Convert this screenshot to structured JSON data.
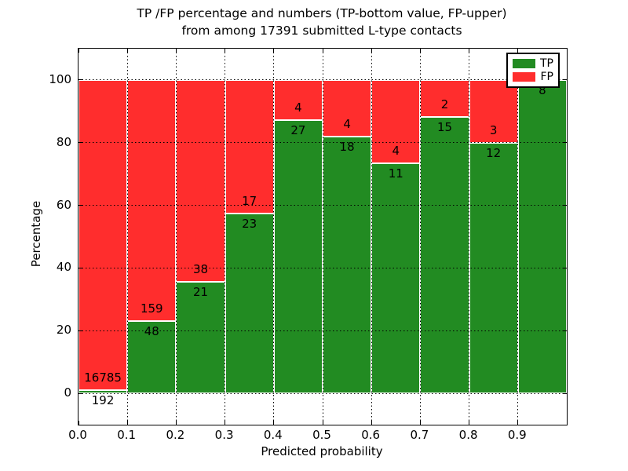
{
  "figure": {
    "title_line1": "TP /FP percentage and numbers (TP-bottom value, FP-upper)",
    "title_line2": "from among 17391 submitted L-type contacts"
  },
  "axes": {
    "xlabel": "Predicted probability",
    "ylabel": "Percentage",
    "xticks": [
      "0.0",
      "0.1",
      "0.2",
      "0.3",
      "0.4",
      "0.5",
      "0.6",
      "0.7",
      "0.8",
      "0.9"
    ],
    "yticks": [
      "0",
      "20",
      "40",
      "60",
      "80",
      "100"
    ]
  },
  "legend": {
    "items": [
      {
        "label": "TP",
        "color": "#228B22"
      },
      {
        "label": "FP",
        "color": "#FF2D2D"
      }
    ]
  },
  "chart_data": {
    "type": "bar",
    "stacked": true,
    "title": "TP /FP percentage and numbers (TP-bottom value, FP-upper) from among 17391 submitted L-type contacts",
    "xlabel": "Predicted probability",
    "ylabel": "Percentage",
    "xlim": [
      0,
      1
    ],
    "ylim": [
      -10,
      110
    ],
    "grid": true,
    "grid_style": "dotted",
    "legend_position": "upper right",
    "total_submitted": 17391,
    "bin_edges": [
      0.0,
      0.1,
      0.2,
      0.3,
      0.4,
      0.5,
      0.6,
      0.7,
      0.8,
      0.9,
      1.0
    ],
    "categories": [
      "0.0-0.1",
      "0.1-0.2",
      "0.2-0.3",
      "0.3-0.4",
      "0.4-0.5",
      "0.5-0.6",
      "0.6-0.7",
      "0.7-0.8",
      "0.8-0.9",
      "0.9-1.0"
    ],
    "series": [
      {
        "name": "TP",
        "color": "#228B22",
        "counts": [
          192,
          48,
          21,
          23,
          27,
          18,
          11,
          15,
          12,
          8
        ],
        "percent": [
          1.13,
          23.19,
          35.59,
          57.5,
          87.1,
          81.82,
          73.33,
          88.24,
          80.0,
          100.0
        ]
      },
      {
        "name": "FP",
        "color": "#FF2D2D",
        "counts": [
          16785,
          159,
          38,
          17,
          4,
          4,
          4,
          2,
          3,
          0
        ],
        "percent": [
          98.87,
          76.81,
          64.41,
          42.5,
          12.9,
          18.18,
          26.67,
          11.76,
          20.0,
          0.0
        ]
      }
    ]
  }
}
